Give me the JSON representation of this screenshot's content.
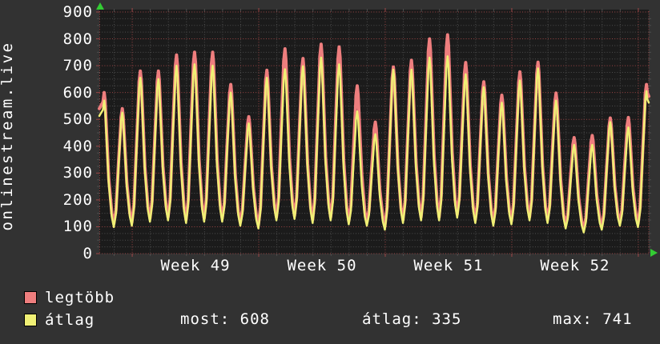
{
  "window": {
    "background": "#323232"
  },
  "chart": {
    "vertical_title": "onlinestream.live",
    "plot_background": "#1b1b1b"
  },
  "stats_row": {
    "items": [
      "most: 608",
      "átlag: 335",
      "max: 741"
    ]
  },
  "chart_data": {
    "type": "line",
    "title": "onlinestream.live",
    "xlabel": "",
    "ylabel": "onlinestream.live",
    "ylim": [
      0,
      900
    ],
    "y_tick_step": 100,
    "y_tick_labels": [
      "900",
      "800",
      "700",
      "600",
      "500",
      "400",
      "300",
      "200",
      "100",
      "0"
    ],
    "x_tick_labels": [
      "Week 49",
      "Week 50",
      "Week 51",
      "Week 52"
    ],
    "days_shown": 30.4,
    "week_boundaries_day": [
      1.82,
      8.82,
      15.82,
      22.82,
      29.82
    ],
    "grid": {
      "on": true,
      "minor_step": 25,
      "major_color": "#9c4545",
      "minor_color": "#4d4d4d"
    },
    "axis_arrow_color": "#33cc33",
    "legend_position": "bottom-left",
    "series": [
      {
        "name": "legtöbb",
        "color": "#ee7e7e",
        "stroke_width": 4,
        "daily_peaks": [
          600,
          540,
          680,
          680,
          740,
          750,
          750,
          630,
          510,
          683,
          763,
          727,
          780,
          770,
          625,
          490,
          695,
          720,
          800,
          815,
          712,
          640,
          590,
          677,
          713,
          598,
          432,
          440,
          505,
          507,
          630
        ]
      },
      {
        "name": "átlag",
        "color": "#f0f075",
        "stroke_width": 2.5,
        "daily_peaks": [
          570,
          525,
          655,
          650,
          700,
          705,
          700,
          600,
          485,
          655,
          687,
          698,
          730,
          705,
          530,
          445,
          685,
          685,
          730,
          735,
          668,
          620,
          562,
          645,
          690,
          570,
          405,
          405,
          490,
          470,
          605
        ]
      }
    ],
    "daily_troughs": [
      105,
      110,
      125,
      130,
      120,
      125,
      125,
      110,
      100,
      130,
      135,
      120,
      130,
      115,
      110,
      95,
      120,
      130,
      130,
      140,
      120,
      110,
      115,
      130,
      120,
      100,
      85,
      95,
      110,
      105
    ],
    "summary": {
      "most": 608,
      "atlag": 335,
      "max": 741
    }
  }
}
